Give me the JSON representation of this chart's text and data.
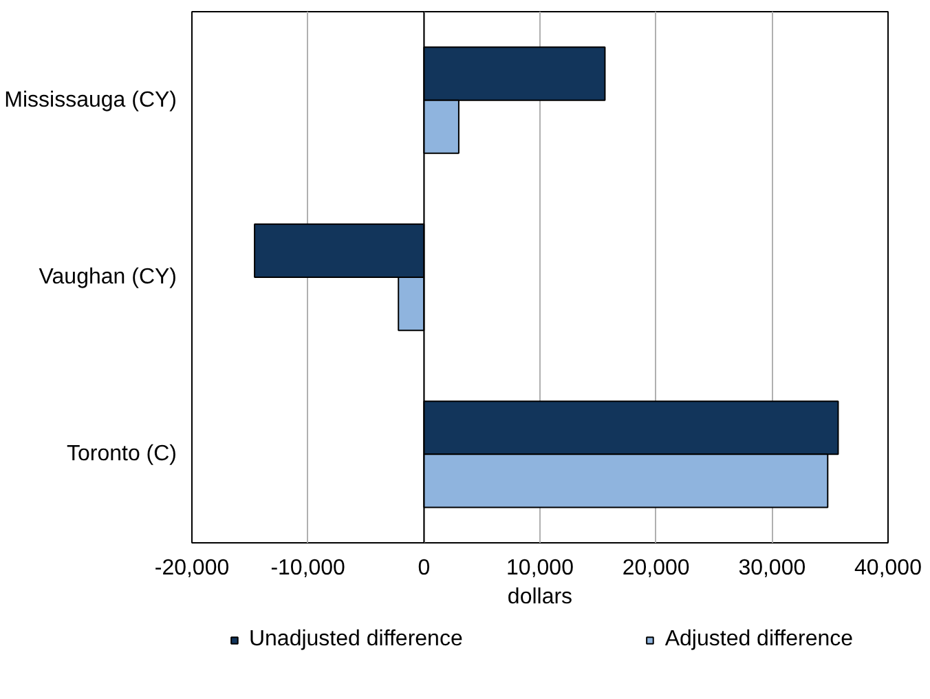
{
  "chart_data": {
    "type": "bar",
    "orientation": "horizontal",
    "categories": [
      "Mississauga (CY)",
      "Vaughan (CY)",
      "Toronto (C)"
    ],
    "series": [
      {
        "name": "Unadjusted difference",
        "color": "#12355b",
        "values": [
          15600,
          -14600,
          35700
        ]
      },
      {
        "name": "Adjusted difference",
        "color": "#8fb4de",
        "values": [
          3000,
          -2200,
          34800
        ]
      }
    ],
    "xlabel": "dollars",
    "xlim": [
      -20000,
      40000
    ],
    "xticks": [
      {
        "value": -20000,
        "label": "-20,000"
      },
      {
        "value": -10000,
        "label": "-10,000"
      },
      0,
      {
        "value": 10000,
        "label": "10,000"
      },
      {
        "value": 20000,
        "label": "20,000"
      },
      {
        "value": 30000,
        "label": "30,000"
      },
      {
        "value": 40000,
        "label": "40,000"
      }
    ],
    "grid": "x",
    "legend": "bottom"
  }
}
